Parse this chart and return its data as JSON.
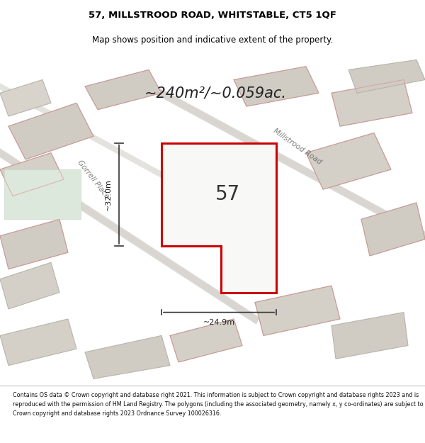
{
  "title_line1": "57, MILLSTROOD ROAD, WHITSTABLE, CT5 1QF",
  "title_line2": "Map shows position and indicative extent of the property.",
  "area_text": "~240m²/~0.059ac.",
  "property_number": "57",
  "dim_width": "~24.9m",
  "dim_height": "~32.0m",
  "street_label1": "Gorrell Place",
  "street_label2": "Millstrood Road",
  "footer_text": "Contains OS data © Crown copyright and database right 2021. This information is subject to Crown copyright and database rights 2023 and is reproduced with the permission of HM Land Registry. The polygons (including the associated geometry, namely x, y co-ordinates) are subject to Crown copyright and database rights 2023 Ordnance Survey 100026316.",
  "bg_color": "#f0efed",
  "map_bg": "#e8e6e2",
  "road_color": "#d4d0c8",
  "building_fill": "#d8d4cc",
  "building_stroke": "#b8b4ac",
  "highlight_stroke": "#cc0000",
  "highlight_fill": "#ffffff",
  "footer_bg": "#ffffff",
  "title_bg": "#ffffff"
}
